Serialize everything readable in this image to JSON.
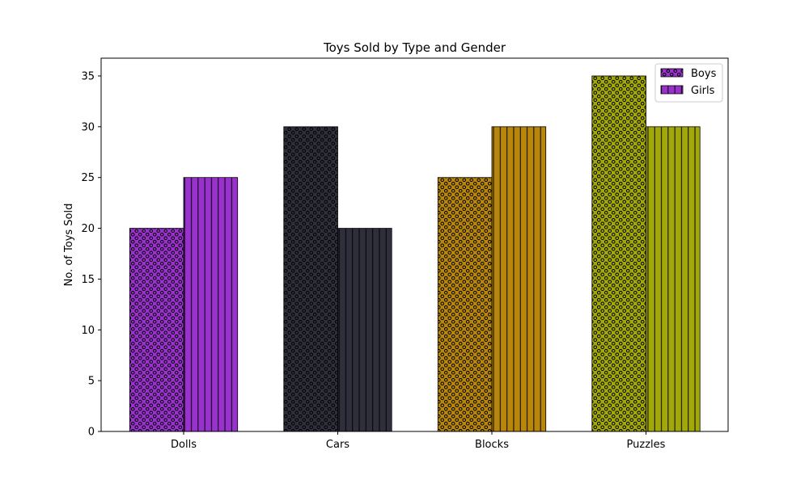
{
  "chart_data": {
    "type": "bar",
    "title": "Toys Sold by Type and Gender",
    "xlabel": "",
    "ylabel": "No. of Toys Sold",
    "categories": [
      "Dolls",
      "Cars",
      "Blocks",
      "Puzzles"
    ],
    "category_colors": [
      "#9932CC",
      "#2F2F3C",
      "#B8860B",
      "#A3A80A"
    ],
    "series": [
      {
        "name": "Boys",
        "values": [
          20,
          30,
          25,
          35
        ],
        "pattern": "circles"
      },
      {
        "name": "Girls",
        "values": [
          25,
          20,
          30,
          30
        ],
        "pattern": "vertical-lines"
      }
    ],
    "ylim": [
      0,
      36.75
    ],
    "yticks": [
      0,
      5,
      10,
      15,
      20,
      25,
      30,
      35
    ],
    "legend_placement": "top-right",
    "legend_color": "#9932CC",
    "grid": false
  }
}
